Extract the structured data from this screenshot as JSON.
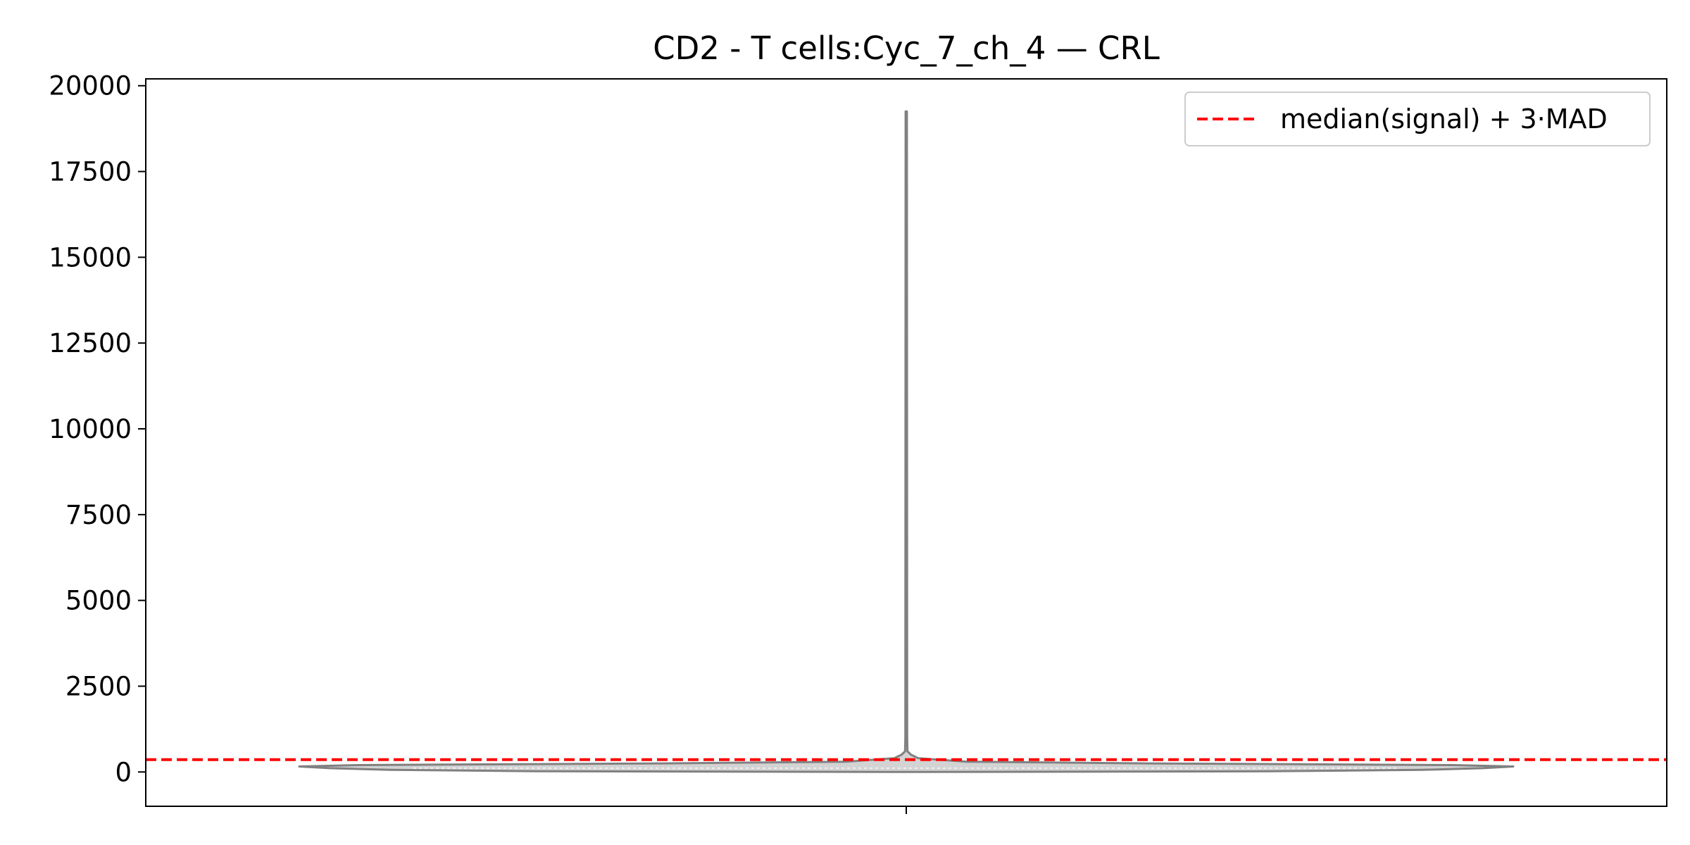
{
  "chart_data": {
    "type": "violin",
    "title": "CD2 - T cells:Cyc_7_ch_4 — CRL",
    "xlabel": "",
    "ylabel": "",
    "ylim": [
      -1000,
      20200
    ],
    "yticks": [
      0,
      2500,
      5000,
      7500,
      10000,
      12500,
      15000,
      17500,
      20000
    ],
    "ytick_labels": [
      "0",
      "2500",
      "5000",
      "7500",
      "10000",
      "12500",
      "15000",
      "17500",
      "20000"
    ],
    "xtick_labels": [
      ""
    ],
    "grid": false,
    "violin": {
      "color": "#808080",
      "fill": "#d3d3d3",
      "min": 0,
      "max": 19250,
      "density_profile": [
        {
          "y": 0,
          "half_width": 0.0
        },
        {
          "y": 20,
          "half_width": 0.6
        },
        {
          "y": 60,
          "half_width": 0.85
        },
        {
          "y": 110,
          "half_width": 0.95
        },
        {
          "y": 160,
          "half_width": 1.0
        },
        {
          "y": 200,
          "half_width": 0.9
        },
        {
          "y": 250,
          "half_width": 0.4
        },
        {
          "y": 300,
          "half_width": 0.1
        },
        {
          "y": 400,
          "half_width": 0.02
        },
        {
          "y": 500,
          "half_width": 0.008
        },
        {
          "y": 600,
          "half_width": 0.002
        },
        {
          "y": 1000,
          "half_width": 0.0015
        },
        {
          "y": 19250,
          "half_width": 0.001
        }
      ]
    },
    "threshold": {
      "label": "median(signal) + 3·MAD",
      "value": 360,
      "color": "#ff0000",
      "style": "dashed"
    },
    "legend": {
      "position": "top-right",
      "entries": [
        "median(signal) + 3·MAD"
      ]
    }
  }
}
